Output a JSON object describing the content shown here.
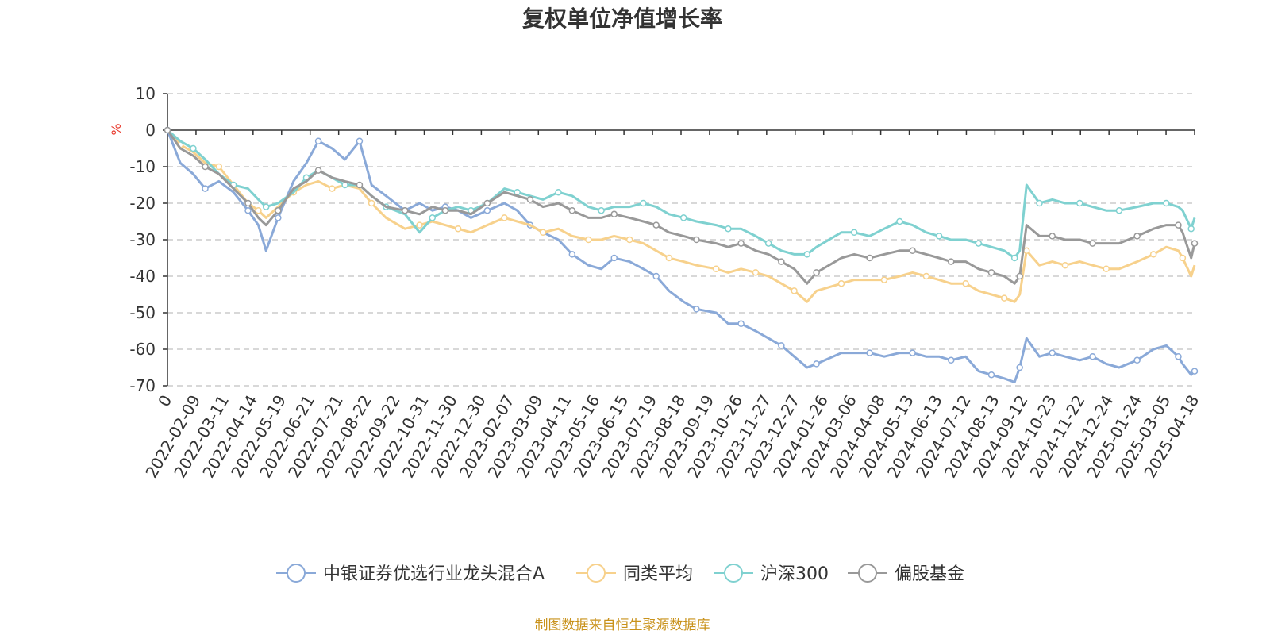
{
  "chart_data": {
    "type": "line",
    "title": "复权单位净值增长率",
    "ylabel": "%",
    "ylim": [
      -70,
      10
    ],
    "yticks": [
      10,
      0,
      -10,
      -20,
      -30,
      -40,
      -50,
      -60,
      -70
    ],
    "xlim": [
      "2022-01-10",
      "2025-04-22"
    ],
    "grid": true,
    "legend_position": "bottom",
    "x_tick_labels": [
      "0",
      "2022-02-09",
      "2022-03-11",
      "2022-04-14",
      "2022-05-19",
      "2022-06-21",
      "2022-07-21",
      "2022-08-22",
      "2022-09-22",
      "2022-10-31",
      "2022-11-30",
      "2022-12-30",
      "2023-02-07",
      "2023-03-09",
      "2023-04-11",
      "2023-05-16",
      "2023-06-15",
      "2023-07-19",
      "2023-08-18",
      "2023-09-19",
      "2023-10-26",
      "2023-11-27",
      "2023-12-27",
      "2024-01-26",
      "2024-03-06",
      "2024-04-08",
      "2024-05-13",
      "2024-06-13",
      "2024-07-12",
      "2024-08-13",
      "2024-09-12",
      "2024-10-23",
      "2024-11-22",
      "2024-12-24",
      "2025-01-24",
      "2025-03-05",
      "2025-04-18"
    ],
    "x": [
      "2022-01-10",
      "2022-01-25",
      "2022-02-09",
      "2022-02-23",
      "2022-03-11",
      "2022-03-28",
      "2022-04-14",
      "2022-04-26",
      "2022-05-05",
      "2022-05-19",
      "2022-06-06",
      "2022-06-21",
      "2022-07-05",
      "2022-07-21",
      "2022-08-05",
      "2022-08-22",
      "2022-09-05",
      "2022-09-22",
      "2022-10-14",
      "2022-10-31",
      "2022-11-15",
      "2022-11-30",
      "2022-12-15",
      "2022-12-30",
      "2023-01-18",
      "2023-02-07",
      "2023-02-22",
      "2023-03-09",
      "2023-03-24",
      "2023-04-11",
      "2023-04-27",
      "2023-05-16",
      "2023-05-31",
      "2023-06-15",
      "2023-07-03",
      "2023-07-19",
      "2023-08-03",
      "2023-08-18",
      "2023-09-04",
      "2023-09-19",
      "2023-10-12",
      "2023-10-26",
      "2023-11-10",
      "2023-11-27",
      "2023-12-12",
      "2023-12-27",
      "2024-01-11",
      "2024-01-26",
      "2024-02-06",
      "2024-03-06",
      "2024-03-21",
      "2024-04-08",
      "2024-04-25",
      "2024-05-13",
      "2024-05-28",
      "2024-06-13",
      "2024-06-28",
      "2024-07-12",
      "2024-07-29",
      "2024-08-13",
      "2024-08-28",
      "2024-09-12",
      "2024-09-24",
      "2024-09-30",
      "2024-10-08",
      "2024-10-23",
      "2024-11-07",
      "2024-11-22",
      "2024-12-09",
      "2024-12-24",
      "2025-01-09",
      "2025-01-24",
      "2025-02-14",
      "2025-03-05",
      "2025-03-20",
      "2025-04-03",
      "2025-04-08",
      "2025-04-18",
      "2025-04-22"
    ],
    "series": [
      {
        "name": "中银证券优选行业龙头混合A",
        "color": "#8aa9d8",
        "values": [
          0,
          -9,
          -12,
          -16,
          -14,
          -17,
          -22,
          -26,
          -33,
          -24,
          -14,
          -9,
          -3,
          -5,
          -8,
          -3,
          -15,
          -18,
          -22,
          -20,
          -22,
          -21,
          -22,
          -24,
          -22,
          -20,
          -22,
          -26,
          -28,
          -30,
          -34,
          -37,
          -38,
          -35,
          -36,
          -38,
          -40,
          -44,
          -47,
          -49,
          -50,
          -53,
          -53,
          -55,
          -57,
          -59,
          -62,
          -65,
          -64,
          -61,
          -61,
          -61,
          -62,
          -61,
          -61,
          -62,
          -62,
          -63,
          -62,
          -66,
          -67,
          -68,
          -69,
          -65,
          -57,
          -62,
          -61,
          -62,
          -63,
          -62,
          -64,
          -65,
          -63,
          -60,
          -59,
          -62,
          -64,
          -67,
          -66
        ]
      },
      {
        "name": "同类平均",
        "color": "#f7d18c",
        "values": [
          0,
          -4,
          -6,
          -9,
          -10,
          -15,
          -20,
          -22,
          -24,
          -21,
          -17,
          -15,
          -14,
          -16,
          -15,
          -16,
          -20,
          -24,
          -27,
          -26,
          -25,
          -26,
          -27,
          -28,
          -26,
          -24,
          -25,
          -26,
          -28,
          -27,
          -29,
          -30,
          -30,
          -29,
          -30,
          -31,
          -33,
          -35,
          -36,
          -37,
          -38,
          -39,
          -38,
          -39,
          -40,
          -42,
          -44,
          -47,
          -44,
          -42,
          -41,
          -41,
          -41,
          -40,
          -39,
          -40,
          -41,
          -42,
          -42,
          -44,
          -45,
          -46,
          -47,
          -45,
          -33,
          -37,
          -36,
          -37,
          -36,
          -37,
          -38,
          -38,
          -36,
          -34,
          -32,
          -33,
          -35,
          -40,
          -37
        ]
      },
      {
        "name": "沪深300",
        "color": "#7fd1d0",
        "values": [
          0,
          -3,
          -5,
          -8,
          -12,
          -15,
          -16,
          -19,
          -21,
          -20,
          -17,
          -13,
          -11,
          -13,
          -15,
          -15,
          -18,
          -21,
          -23,
          -28,
          -24,
          -22,
          -21,
          -22,
          -20,
          -16,
          -17,
          -18,
          -19,
          -17,
          -18,
          -21,
          -22,
          -21,
          -21,
          -20,
          -21,
          -23,
          -24,
          -25,
          -26,
          -27,
          -27,
          -29,
          -31,
          -33,
          -34,
          -34,
          -32,
          -28,
          -28,
          -29,
          -27,
          -25,
          -26,
          -28,
          -29,
          -30,
          -30,
          -31,
          -32,
          -33,
          -35,
          -33,
          -15,
          -20,
          -19,
          -20,
          -20,
          -21,
          -22,
          -22,
          -21,
          -20,
          -20,
          -21,
          -22,
          -27,
          -24
        ]
      },
      {
        "name": "偏股基金",
        "color": "#999999",
        "values": [
          0,
          -5,
          -7,
          -10,
          -12,
          -16,
          -20,
          -24,
          -26,
          -22,
          -16,
          -14,
          -11,
          -13,
          -14,
          -15,
          -18,
          -21,
          -22,
          -23,
          -21,
          -22,
          -22,
          -23,
          -20,
          -17,
          -18,
          -19,
          -21,
          -20,
          -22,
          -24,
          -24,
          -23,
          -24,
          -25,
          -26,
          -28,
          -29,
          -30,
          -31,
          -32,
          -31,
          -33,
          -34,
          -36,
          -38,
          -42,
          -39,
          -35,
          -34,
          -35,
          -34,
          -33,
          -33,
          -34,
          -35,
          -36,
          -36,
          -38,
          -39,
          -40,
          -42,
          -40,
          -26,
          -29,
          -29,
          -30,
          -30,
          -31,
          -31,
          -31,
          -29,
          -27,
          -26,
          -26,
          -28,
          -35,
          -31
        ]
      }
    ]
  },
  "source": "制图数据来自恒生聚源数据库"
}
